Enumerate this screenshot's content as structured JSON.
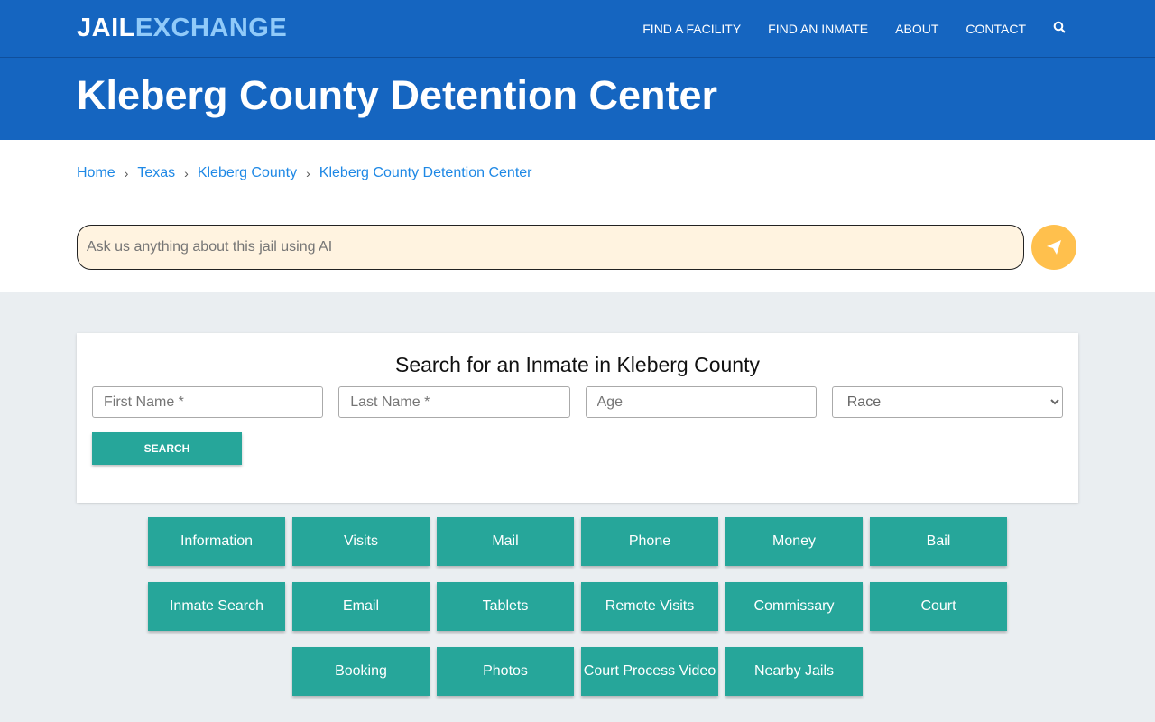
{
  "nav": {
    "logo_a": "JAIL",
    "logo_b": "EXCHANGE",
    "items": [
      "FIND A FACILITY",
      "FIND AN INMATE",
      "ABOUT",
      "CONTACT"
    ],
    "search_icon": "search-icon"
  },
  "hero": {
    "title": "Kleberg County Detention Center"
  },
  "breadcrumb": [
    "Home",
    "Texas",
    "Kleberg County",
    "Kleberg County Detention Center"
  ],
  "ai": {
    "placeholder": "Ask us anything about this jail using AI",
    "send_icon": "paper-plane-icon"
  },
  "search": {
    "title": "Search for an Inmate in Kleberg County",
    "first": "First Name *",
    "last": "Last Name *",
    "age": "Age",
    "race": "Race",
    "button": "SEARCH"
  },
  "links": [
    "Information",
    "Visits",
    "Mail",
    "Phone",
    "Money",
    "Bail",
    "Inmate Search",
    "Email",
    "Tablets",
    "Remote Visits",
    "Commissary",
    "Court",
    "Booking",
    "Photos",
    "Court Process Video",
    "Nearby Jails"
  ]
}
